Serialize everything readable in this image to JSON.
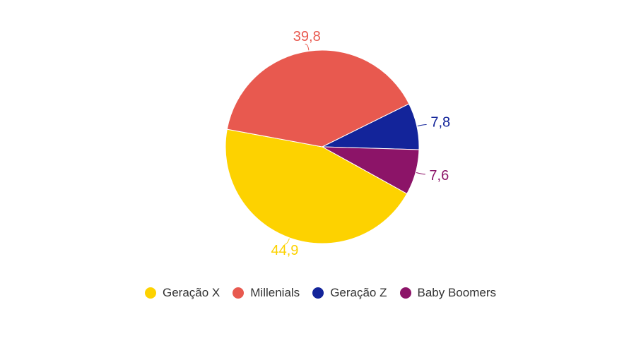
{
  "chart_data": {
    "type": "pie",
    "categories": [
      "Geração X",
      "Millenials",
      "Geração Z",
      "Baby Boomers"
    ],
    "values": [
      44.9,
      39.8,
      7.8,
      7.6
    ],
    "value_labels": [
      "44,9",
      "39,8",
      "7,8",
      "7,6"
    ],
    "colors": [
      "#FDD200",
      "#E8594F",
      "#13249A",
      "#8C1468"
    ],
    "legend_position": "bottom",
    "title": "",
    "start_direction": "clockwise"
  },
  "legend": {
    "items": [
      {
        "label": "Geração X",
        "color": "#FDD200"
      },
      {
        "label": "Millenials",
        "color": "#E8594F"
      },
      {
        "label": "Geração Z",
        "color": "#13249A"
      },
      {
        "label": "Baby Boomers",
        "color": "#8C1468"
      }
    ]
  }
}
